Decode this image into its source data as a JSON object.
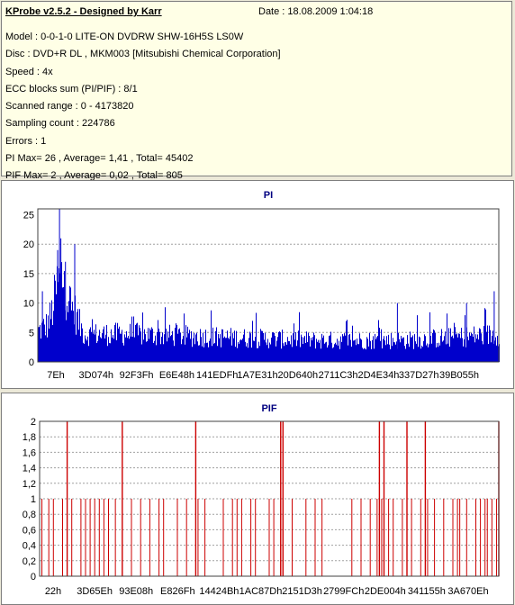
{
  "header": {
    "app_title": "KProbe v2.5.2 - Designed by Karr",
    "date_text": "Date : 18.08.2009 1:04:18",
    "lines": [
      "Model : 0-0-1-0 LITE-ON DVDRW SHW-16H5S  LS0W",
      "Disc : DVD+R DL , MKM003 [Mitsubishi Chemical Corporation]",
      "Speed : 4x",
      "ECC blocks sum (PI/PIF) : 8/1",
      "Scanned range : 0 - 4173820",
      "Sampling count : 224786",
      "Errors : 1",
      "PI Max= 26 , Average= 1,41 , Total= 45402",
      "PIF Max= 2 , Average= 0,02 , Total= 805"
    ]
  },
  "chart_data": [
    {
      "type": "bar",
      "title": "PI",
      "color": "#0000cc",
      "grid": true,
      "ylim": [
        0,
        26
      ],
      "yticks": [
        0,
        5,
        10,
        15,
        20,
        25
      ],
      "ytick_labels": [
        "0",
        "5",
        "10",
        "15",
        "20",
        "25"
      ],
      "xtick_labels": [
        "7Eh",
        "3D074h",
        "92F3Fh",
        "E6E48h",
        "141EDFh",
        "1A7E31h",
        "20D640h",
        "2711C3h",
        "2D4E34h",
        "337D27h",
        "39B055h"
      ],
      "series_profile": {
        "x": [
          0,
          0.02,
          0.03,
          0.04,
          0.05,
          0.06,
          0.07,
          0.08,
          0.09,
          0.1,
          0.2,
          0.4,
          0.6,
          0.8,
          1.0
        ],
        "y": [
          5,
          6,
          8,
          12,
          14,
          12,
          9,
          8,
          6,
          4.5,
          4.5,
          4,
          3.5,
          3.5,
          4.5
        ]
      },
      "peaks": [
        {
          "x": 0.047,
          "y": 26
        },
        {
          "x": 0.05,
          "y": 21
        },
        {
          "x": 0.043,
          "y": 19
        },
        {
          "x": 0.08,
          "y": 20
        },
        {
          "x": 0.06,
          "y": 17
        },
        {
          "x": 0.01,
          "y": 12
        },
        {
          "x": 0.78,
          "y": 10
        },
        {
          "x": 0.93,
          "y": 10
        },
        {
          "x": 0.99,
          "y": 12
        },
        {
          "x": 1.0,
          "y": 9
        }
      ]
    },
    {
      "type": "bar",
      "title": "PIF",
      "color": "#cc0000",
      "grid": true,
      "ylim": [
        0,
        2
      ],
      "yticks": [
        0,
        0.2,
        0.4,
        0.6,
        0.8,
        1,
        1.2,
        1.4,
        1.6,
        1.8,
        2
      ],
      "ytick_labels": [
        "0",
        "0,2",
        "0,4",
        "0,6",
        "0,8",
        "1",
        "1,2",
        "1,4",
        "1,6",
        "1,8",
        "2"
      ],
      "xtick_labels": [
        "22h",
        "3D65Eh",
        "93E08h",
        "E826Fh",
        "14424Bh",
        "1AC87Dh",
        "2151D3h",
        "2799FCh",
        "2DE004h",
        "341155h",
        "3A670Eh"
      ],
      "values_at_2": [
        0.06,
        0.18,
        0.34,
        0.53,
        0.525,
        0.74,
        0.75,
        0.8,
        0.84,
        1.0
      ],
      "values_at_1": [
        0.005,
        0.02,
        0.03,
        0.05,
        0.07,
        0.09,
        0.1,
        0.11,
        0.12,
        0.13,
        0.14,
        0.15,
        0.165,
        0.2,
        0.22,
        0.24,
        0.26,
        0.27,
        0.3,
        0.32,
        0.345,
        0.36,
        0.4,
        0.42,
        0.43,
        0.44,
        0.46,
        0.47,
        0.5,
        0.51,
        0.55,
        0.58,
        0.6,
        0.615,
        0.68,
        0.7,
        0.72,
        0.735,
        0.745,
        0.76,
        0.77,
        0.79,
        0.81,
        0.83,
        0.845,
        0.86,
        0.88,
        0.9,
        0.91,
        0.915,
        0.93,
        0.95,
        0.96,
        0.97,
        0.975,
        0.985,
        0.995
      ]
    }
  ]
}
